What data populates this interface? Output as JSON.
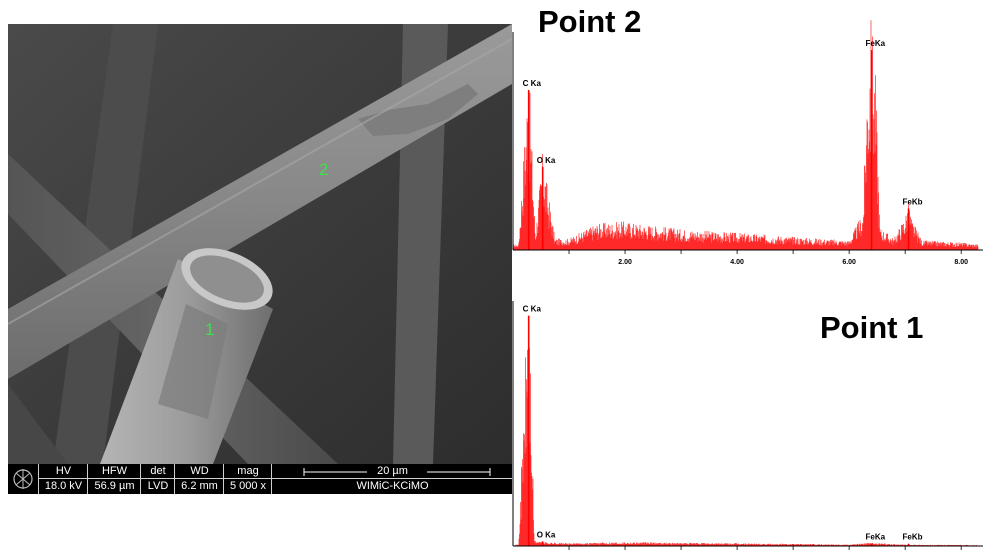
{
  "sem": {
    "markers": [
      "2",
      "1"
    ],
    "databar": {
      "headers": [
        "HV",
        "HFW",
        "det",
        "WD",
        "mag"
      ],
      "values": [
        "18.0 kV",
        "56.9 µm",
        "LVD",
        "6.2 mm",
        "5 000 x"
      ],
      "scalebar_label": "20 µm",
      "institution": "WIMiC-KCiMO"
    }
  },
  "colors": {
    "spectrum": "#ff0000",
    "marker": "#3fe04a"
  },
  "chart_data": [
    {
      "type": "line",
      "title": "Point 2",
      "xlabel": "",
      "ylabel": "",
      "xlim": [
        0,
        8.3
      ],
      "xticks": [
        "2.00",
        "4.00",
        "6.00",
        "8.00"
      ],
      "xtick_values": [
        2.0,
        4.0,
        6.0,
        8.0
      ],
      "peak_labels": [
        {
          "label": "C Ka",
          "x": 0.28,
          "y": 100
        },
        {
          "label": "O Ka",
          "x": 0.53,
          "y": 52
        },
        {
          "label": "FeKa",
          "x": 6.4,
          "y": 125
        },
        {
          "label": "FeKb",
          "x": 7.06,
          "y": 26
        }
      ],
      "series": [
        {
          "values": [
            {
              "x": 0.1,
              "y": 3
            },
            {
              "x": 0.28,
              "y": 100
            },
            {
              "x": 0.4,
              "y": 8
            },
            {
              "x": 0.53,
              "y": 52
            },
            {
              "x": 0.63,
              "y": 30
            },
            {
              "x": 0.75,
              "y": 6
            },
            {
              "x": 1.0,
              "y": 6
            },
            {
              "x": 1.5,
              "y": 14
            },
            {
              "x": 2.0,
              "y": 15
            },
            {
              "x": 2.5,
              "y": 13
            },
            {
              "x": 3.0,
              "y": 11
            },
            {
              "x": 3.5,
              "y": 10
            },
            {
              "x": 4.0,
              "y": 9
            },
            {
              "x": 4.5,
              "y": 8
            },
            {
              "x": 5.0,
              "y": 7
            },
            {
              "x": 5.5,
              "y": 6
            },
            {
              "x": 6.0,
              "y": 5
            },
            {
              "x": 6.25,
              "y": 20
            },
            {
              "x": 6.33,
              "y": 100
            },
            {
              "x": 6.4,
              "y": 125
            },
            {
              "x": 6.47,
              "y": 95
            },
            {
              "x": 6.55,
              "y": 12
            },
            {
              "x": 6.8,
              "y": 6
            },
            {
              "x": 7.0,
              "y": 18
            },
            {
              "x": 7.06,
              "y": 26
            },
            {
              "x": 7.12,
              "y": 16
            },
            {
              "x": 7.3,
              "y": 5
            },
            {
              "x": 8.0,
              "y": 4
            },
            {
              "x": 8.3,
              "y": 3
            }
          ]
        }
      ]
    },
    {
      "type": "line",
      "title": "Point 1",
      "xlabel": "",
      "ylabel": "",
      "xlim": [
        0,
        8.3
      ],
      "peak_labels": [
        {
          "label": "C Ka",
          "x": 0.28,
          "y": 100
        },
        {
          "label": "O Ka",
          "x": 0.53,
          "y": 2
        },
        {
          "label": "FeKa",
          "x": 6.4,
          "y": 1
        },
        {
          "label": "FeKb",
          "x": 7.06,
          "y": 1
        }
      ],
      "series": [
        {
          "values": [
            {
              "x": 0.1,
              "y": 0.5
            },
            {
              "x": 0.28,
              "y": 100
            },
            {
              "x": 0.38,
              "y": 2
            },
            {
              "x": 0.53,
              "y": 1.5
            },
            {
              "x": 1.0,
              "y": 1
            },
            {
              "x": 2.0,
              "y": 1.5
            },
            {
              "x": 3.0,
              "y": 1.2
            },
            {
              "x": 4.0,
              "y": 1
            },
            {
              "x": 5.0,
              "y": 0.8
            },
            {
              "x": 6.0,
              "y": 0.6
            },
            {
              "x": 6.4,
              "y": 1.2
            },
            {
              "x": 7.0,
              "y": 0.5
            },
            {
              "x": 8.0,
              "y": 0.4
            },
            {
              "x": 8.3,
              "y": 0.3
            }
          ]
        }
      ]
    }
  ]
}
